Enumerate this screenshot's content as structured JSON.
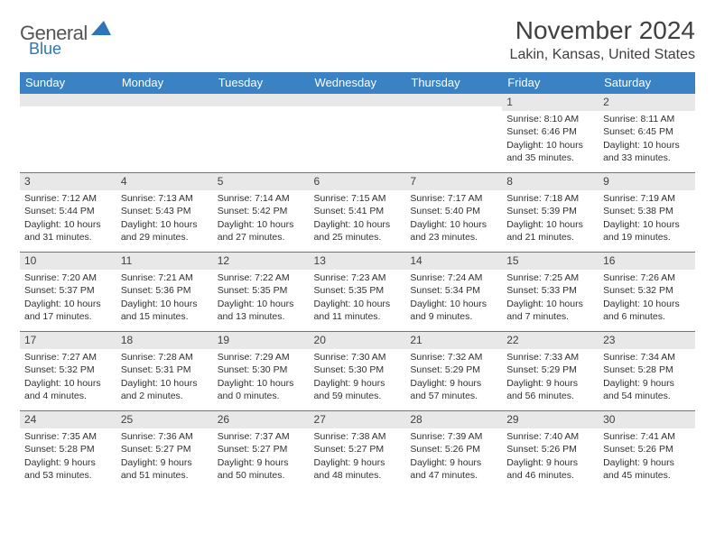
{
  "logo": {
    "word1": "General",
    "word2": "Blue"
  },
  "title": "November 2024",
  "location": "Lakin, Kansas, United States",
  "colors": {
    "header_bg": "#3b82c4",
    "header_text": "#ffffff",
    "border": "#3b82c4",
    "shade_bg": "#e8e8e8",
    "text": "#303030",
    "logo_gray": "#555555",
    "logo_blue": "#2d74b8"
  },
  "typography": {
    "title_size": 28,
    "location_size": 16,
    "dayheader_size": 13,
    "cell_size": 10.5,
    "daynum_size": 12
  },
  "day_headers": [
    "Sunday",
    "Monday",
    "Tuesday",
    "Wednesday",
    "Thursday",
    "Friday",
    "Saturday"
  ],
  "weeks": [
    [
      null,
      null,
      null,
      null,
      null,
      {
        "n": "1",
        "sr": "Sunrise: 8:10 AM",
        "ss": "Sunset: 6:46 PM",
        "dl": "Daylight: 10 hours and 35 minutes."
      },
      {
        "n": "2",
        "sr": "Sunrise: 8:11 AM",
        "ss": "Sunset: 6:45 PM",
        "dl": "Daylight: 10 hours and 33 minutes."
      }
    ],
    [
      {
        "n": "3",
        "sr": "Sunrise: 7:12 AM",
        "ss": "Sunset: 5:44 PM",
        "dl": "Daylight: 10 hours and 31 minutes."
      },
      {
        "n": "4",
        "sr": "Sunrise: 7:13 AM",
        "ss": "Sunset: 5:43 PM",
        "dl": "Daylight: 10 hours and 29 minutes."
      },
      {
        "n": "5",
        "sr": "Sunrise: 7:14 AM",
        "ss": "Sunset: 5:42 PM",
        "dl": "Daylight: 10 hours and 27 minutes."
      },
      {
        "n": "6",
        "sr": "Sunrise: 7:15 AM",
        "ss": "Sunset: 5:41 PM",
        "dl": "Daylight: 10 hours and 25 minutes."
      },
      {
        "n": "7",
        "sr": "Sunrise: 7:17 AM",
        "ss": "Sunset: 5:40 PM",
        "dl": "Daylight: 10 hours and 23 minutes."
      },
      {
        "n": "8",
        "sr": "Sunrise: 7:18 AM",
        "ss": "Sunset: 5:39 PM",
        "dl": "Daylight: 10 hours and 21 minutes."
      },
      {
        "n": "9",
        "sr": "Sunrise: 7:19 AM",
        "ss": "Sunset: 5:38 PM",
        "dl": "Daylight: 10 hours and 19 minutes."
      }
    ],
    [
      {
        "n": "10",
        "sr": "Sunrise: 7:20 AM",
        "ss": "Sunset: 5:37 PM",
        "dl": "Daylight: 10 hours and 17 minutes."
      },
      {
        "n": "11",
        "sr": "Sunrise: 7:21 AM",
        "ss": "Sunset: 5:36 PM",
        "dl": "Daylight: 10 hours and 15 minutes."
      },
      {
        "n": "12",
        "sr": "Sunrise: 7:22 AM",
        "ss": "Sunset: 5:35 PM",
        "dl": "Daylight: 10 hours and 13 minutes."
      },
      {
        "n": "13",
        "sr": "Sunrise: 7:23 AM",
        "ss": "Sunset: 5:35 PM",
        "dl": "Daylight: 10 hours and 11 minutes."
      },
      {
        "n": "14",
        "sr": "Sunrise: 7:24 AM",
        "ss": "Sunset: 5:34 PM",
        "dl": "Daylight: 10 hours and 9 minutes."
      },
      {
        "n": "15",
        "sr": "Sunrise: 7:25 AM",
        "ss": "Sunset: 5:33 PM",
        "dl": "Daylight: 10 hours and 7 minutes."
      },
      {
        "n": "16",
        "sr": "Sunrise: 7:26 AM",
        "ss": "Sunset: 5:32 PM",
        "dl": "Daylight: 10 hours and 6 minutes."
      }
    ],
    [
      {
        "n": "17",
        "sr": "Sunrise: 7:27 AM",
        "ss": "Sunset: 5:32 PM",
        "dl": "Daylight: 10 hours and 4 minutes."
      },
      {
        "n": "18",
        "sr": "Sunrise: 7:28 AM",
        "ss": "Sunset: 5:31 PM",
        "dl": "Daylight: 10 hours and 2 minutes."
      },
      {
        "n": "19",
        "sr": "Sunrise: 7:29 AM",
        "ss": "Sunset: 5:30 PM",
        "dl": "Daylight: 10 hours and 0 minutes."
      },
      {
        "n": "20",
        "sr": "Sunrise: 7:30 AM",
        "ss": "Sunset: 5:30 PM",
        "dl": "Daylight: 9 hours and 59 minutes."
      },
      {
        "n": "21",
        "sr": "Sunrise: 7:32 AM",
        "ss": "Sunset: 5:29 PM",
        "dl": "Daylight: 9 hours and 57 minutes."
      },
      {
        "n": "22",
        "sr": "Sunrise: 7:33 AM",
        "ss": "Sunset: 5:29 PM",
        "dl": "Daylight: 9 hours and 56 minutes."
      },
      {
        "n": "23",
        "sr": "Sunrise: 7:34 AM",
        "ss": "Sunset: 5:28 PM",
        "dl": "Daylight: 9 hours and 54 minutes."
      }
    ],
    [
      {
        "n": "24",
        "sr": "Sunrise: 7:35 AM",
        "ss": "Sunset: 5:28 PM",
        "dl": "Daylight: 9 hours and 53 minutes."
      },
      {
        "n": "25",
        "sr": "Sunrise: 7:36 AM",
        "ss": "Sunset: 5:27 PM",
        "dl": "Daylight: 9 hours and 51 minutes."
      },
      {
        "n": "26",
        "sr": "Sunrise: 7:37 AM",
        "ss": "Sunset: 5:27 PM",
        "dl": "Daylight: 9 hours and 50 minutes."
      },
      {
        "n": "27",
        "sr": "Sunrise: 7:38 AM",
        "ss": "Sunset: 5:27 PM",
        "dl": "Daylight: 9 hours and 48 minutes."
      },
      {
        "n": "28",
        "sr": "Sunrise: 7:39 AM",
        "ss": "Sunset: 5:26 PM",
        "dl": "Daylight: 9 hours and 47 minutes."
      },
      {
        "n": "29",
        "sr": "Sunrise: 7:40 AM",
        "ss": "Sunset: 5:26 PM",
        "dl": "Daylight: 9 hours and 46 minutes."
      },
      {
        "n": "30",
        "sr": "Sunrise: 7:41 AM",
        "ss": "Sunset: 5:26 PM",
        "dl": "Daylight: 9 hours and 45 minutes."
      }
    ]
  ]
}
